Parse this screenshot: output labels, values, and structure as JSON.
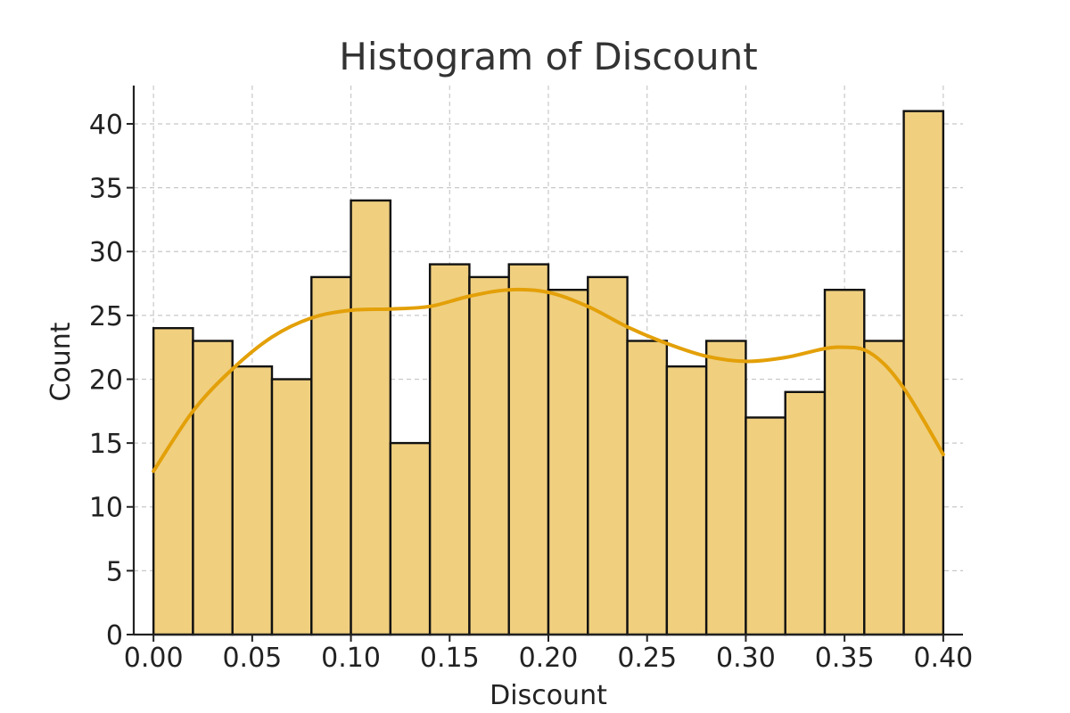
{
  "chart_data": {
    "type": "bar",
    "subtype": "histogram",
    "title": "Histogram of Discount",
    "xlabel": "Discount",
    "ylabel": "Count",
    "xlim": [
      -0.01,
      0.41
    ],
    "ylim": [
      0,
      43
    ],
    "xticks": [
      0.0,
      0.05,
      0.1,
      0.15,
      0.2,
      0.25,
      0.3,
      0.35,
      0.4
    ],
    "xtick_labels": [
      "0.00",
      "0.05",
      "0.10",
      "0.15",
      "0.20",
      "0.25",
      "0.30",
      "0.35",
      "0.40"
    ],
    "yticks": [
      0,
      5,
      10,
      15,
      20,
      25,
      30,
      35,
      40
    ],
    "ytick_labels": [
      "0",
      "5",
      "10",
      "15",
      "20",
      "25",
      "30",
      "35",
      "40"
    ],
    "grid": true,
    "bin_edges": [
      0.0,
      0.02,
      0.04,
      0.06,
      0.08,
      0.1,
      0.12,
      0.14,
      0.16,
      0.18,
      0.2,
      0.22,
      0.24,
      0.26,
      0.28,
      0.3,
      0.32,
      0.34,
      0.36,
      0.38,
      0.4
    ],
    "values": [
      24,
      23,
      21,
      20,
      28,
      34,
      15,
      29,
      28,
      29,
      27,
      28,
      23,
      21,
      23,
      17,
      19,
      27,
      23,
      41
    ],
    "kde": {
      "x": [
        0.0,
        0.02,
        0.04,
        0.06,
        0.08,
        0.1,
        0.12,
        0.14,
        0.16,
        0.18,
        0.2,
        0.22,
        0.24,
        0.26,
        0.28,
        0.3,
        0.32,
        0.34,
        0.35,
        0.36,
        0.37,
        0.38,
        0.39,
        0.4
      ],
      "y": [
        12.8,
        17.5,
        20.8,
        23.3,
        24.8,
        25.4,
        25.5,
        25.7,
        26.5,
        27.0,
        26.8,
        25.7,
        24.1,
        22.8,
        21.8,
        21.4,
        21.7,
        22.4,
        22.5,
        22.3,
        21.2,
        19.3,
        16.8,
        14.1
      ]
    },
    "colors": {
      "bar_fill": "#f0cf7f",
      "bar_edge": "#111111",
      "kde_line": "#e3a008"
    }
  }
}
